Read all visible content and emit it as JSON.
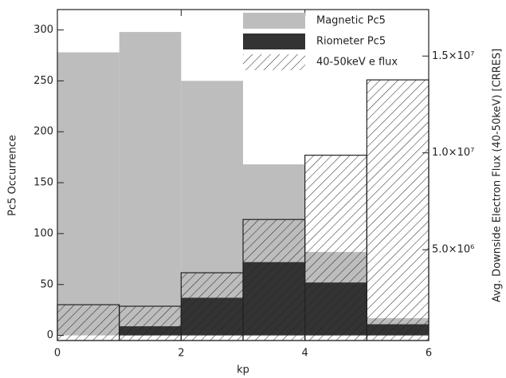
{
  "chart_data": {
    "type": "histogram",
    "x_label": "kp",
    "y_label": "Pc5 Occurrence",
    "y2_label": "Avg. Downside Electron Flux (40-50keV) [CRRES]",
    "bins": [
      0,
      1,
      2,
      3,
      4,
      5,
      6
    ],
    "xlim": [
      0,
      6
    ],
    "xticks": [
      0,
      2,
      4,
      6
    ],
    "ylim": [
      -5,
      320
    ],
    "yticks": [
      0,
      50,
      100,
      150,
      200,
      250,
      300
    ],
    "y2lim": [
      310000,
      17400000
    ],
    "y2ticks": [
      {
        "value": 5000000,
        "label": "5.0×10⁶"
      },
      {
        "value": 10000000,
        "label": "1.0×10⁷"
      },
      {
        "value": 15000000,
        "label": "1.5×10⁷"
      }
    ],
    "legend": "top-right",
    "series": [
      {
        "name": "Magnetic Pc5",
        "color": "#bdbdbd",
        "fill": "solid",
        "values": [
          278,
          298,
          250,
          168,
          82,
          17
        ]
      },
      {
        "name": "Riometer Pc5",
        "color": "#333333",
        "fill": "solid",
        "values": [
          0,
          9,
          37,
          72,
          52,
          11
        ]
      },
      {
        "name": "40-50keV e flux",
        "color": "#222222",
        "fill": "hatch",
        "axis": "y2",
        "values": [
          2160000,
          2080000,
          3810000,
          6560000,
          9880000,
          13770000
        ]
      }
    ]
  }
}
